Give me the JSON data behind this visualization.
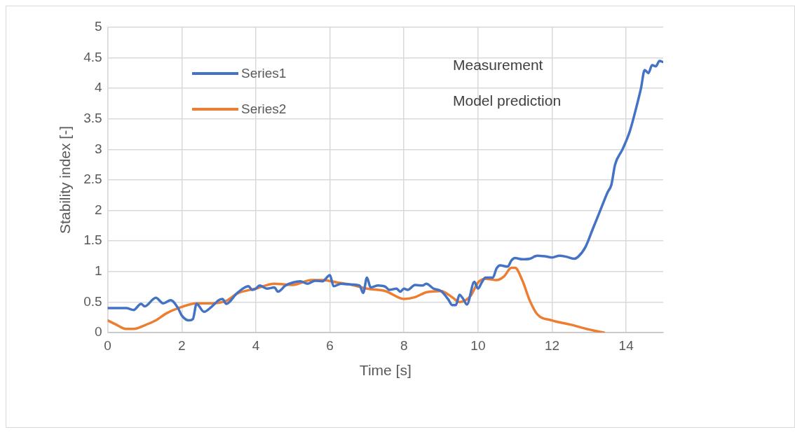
{
  "chart_data": {
    "type": "line",
    "xlabel": "Time [s]",
    "ylabel": "Stability index [-]",
    "xlim": [
      0,
      15
    ],
    "xticks": [
      0,
      2,
      4,
      6,
      8,
      10,
      12,
      14
    ],
    "ylim": [
      0,
      5
    ],
    "yticks": [
      0,
      0.5,
      1,
      1.5,
      2,
      2.5,
      3,
      3.5,
      4,
      4.5,
      5
    ],
    "grid": true,
    "legend": "top left",
    "marker": "none",
    "line_style": "solid",
    "annotations": [
      "Measurement",
      "Model prediction"
    ],
    "series": [
      {
        "name": "Series1",
        "color": "#4472c4",
        "x": [
          0,
          0.3,
          0.5,
          0.7,
          0.9,
          1.0,
          1.3,
          1.5,
          1.7,
          1.9,
          2.0,
          2.2,
          2.3,
          2.4,
          2.6,
          2.8,
          3.0,
          3.1,
          3.2,
          3.5,
          3.8,
          3.9,
          4.0,
          4.1,
          4.3,
          4.5,
          4.6,
          4.8,
          5.0,
          5.2,
          5.4,
          5.6,
          5.8,
          6.0,
          6.1,
          6.3,
          6.5,
          6.8,
          6.9,
          7.0,
          7.1,
          7.3,
          7.5,
          7.6,
          7.8,
          7.9,
          8.0,
          8.1,
          8.3,
          8.5,
          8.6,
          8.8,
          9.0,
          9.2,
          9.3,
          9.4,
          9.5,
          9.6,
          9.7,
          9.9,
          10.0,
          10.1,
          10.2,
          10.4,
          10.5,
          10.6,
          10.8,
          10.9,
          11.0,
          11.2,
          11.4,
          11.6,
          11.8,
          12.0,
          12.2,
          12.4,
          12.6,
          12.7,
          12.9,
          13.1,
          13.3,
          13.5,
          13.6,
          13.7,
          13.9,
          14.1,
          14.3,
          14.4,
          14.5,
          14.6,
          14.7,
          14.8,
          14.9,
          15.0
        ],
        "values": [
          0.4,
          0.4,
          0.4,
          0.37,
          0.47,
          0.43,
          0.57,
          0.48,
          0.53,
          0.4,
          0.28,
          0.2,
          0.22,
          0.47,
          0.34,
          0.42,
          0.53,
          0.55,
          0.47,
          0.65,
          0.76,
          0.7,
          0.72,
          0.77,
          0.72,
          0.74,
          0.67,
          0.77,
          0.82,
          0.84,
          0.8,
          0.85,
          0.84,
          0.94,
          0.76,
          0.8,
          0.79,
          0.77,
          0.65,
          0.9,
          0.74,
          0.77,
          0.75,
          0.7,
          0.72,
          0.67,
          0.72,
          0.7,
          0.78,
          0.77,
          0.8,
          0.72,
          0.68,
          0.54,
          0.45,
          0.45,
          0.62,
          0.55,
          0.46,
          0.83,
          0.72,
          0.82,
          0.9,
          0.9,
          1.05,
          1.1,
          1.08,
          1.18,
          1.22,
          1.2,
          1.21,
          1.26,
          1.25,
          1.23,
          1.26,
          1.24,
          1.21,
          1.24,
          1.4,
          1.7,
          2.0,
          2.3,
          2.42,
          2.75,
          3.0,
          3.3,
          3.75,
          4.0,
          4.3,
          4.25,
          4.38,
          4.36,
          4.45,
          4.43
        ]
      },
      {
        "name": "Series2",
        "color": "#ed7d31",
        "x": [
          0,
          0.2,
          0.5,
          0.7,
          1.0,
          1.3,
          1.6,
          2.0,
          2.4,
          2.8,
          3.2,
          3.5,
          4.0,
          4.5,
          5.0,
          5.5,
          5.8,
          6.2,
          6.6,
          7.0,
          7.5,
          8.0,
          8.3,
          8.6,
          9.0,
          9.3,
          9.5,
          9.8,
          10.0,
          10.2,
          10.5,
          10.7,
          10.9,
          11.0,
          11.2,
          11.4,
          11.6,
          12.0,
          12.5,
          13.0,
          13.4
        ],
        "values": [
          0.2,
          0.14,
          0.06,
          0.06,
          0.12,
          0.2,
          0.32,
          0.42,
          0.48,
          0.48,
          0.52,
          0.64,
          0.72,
          0.8,
          0.78,
          0.86,
          0.86,
          0.82,
          0.78,
          0.72,
          0.68,
          0.55,
          0.58,
          0.66,
          0.68,
          0.58,
          0.5,
          0.6,
          0.82,
          0.88,
          0.86,
          0.92,
          1.06,
          1.06,
          0.85,
          0.52,
          0.3,
          0.2,
          0.13,
          0.05,
          0
        ]
      }
    ]
  }
}
